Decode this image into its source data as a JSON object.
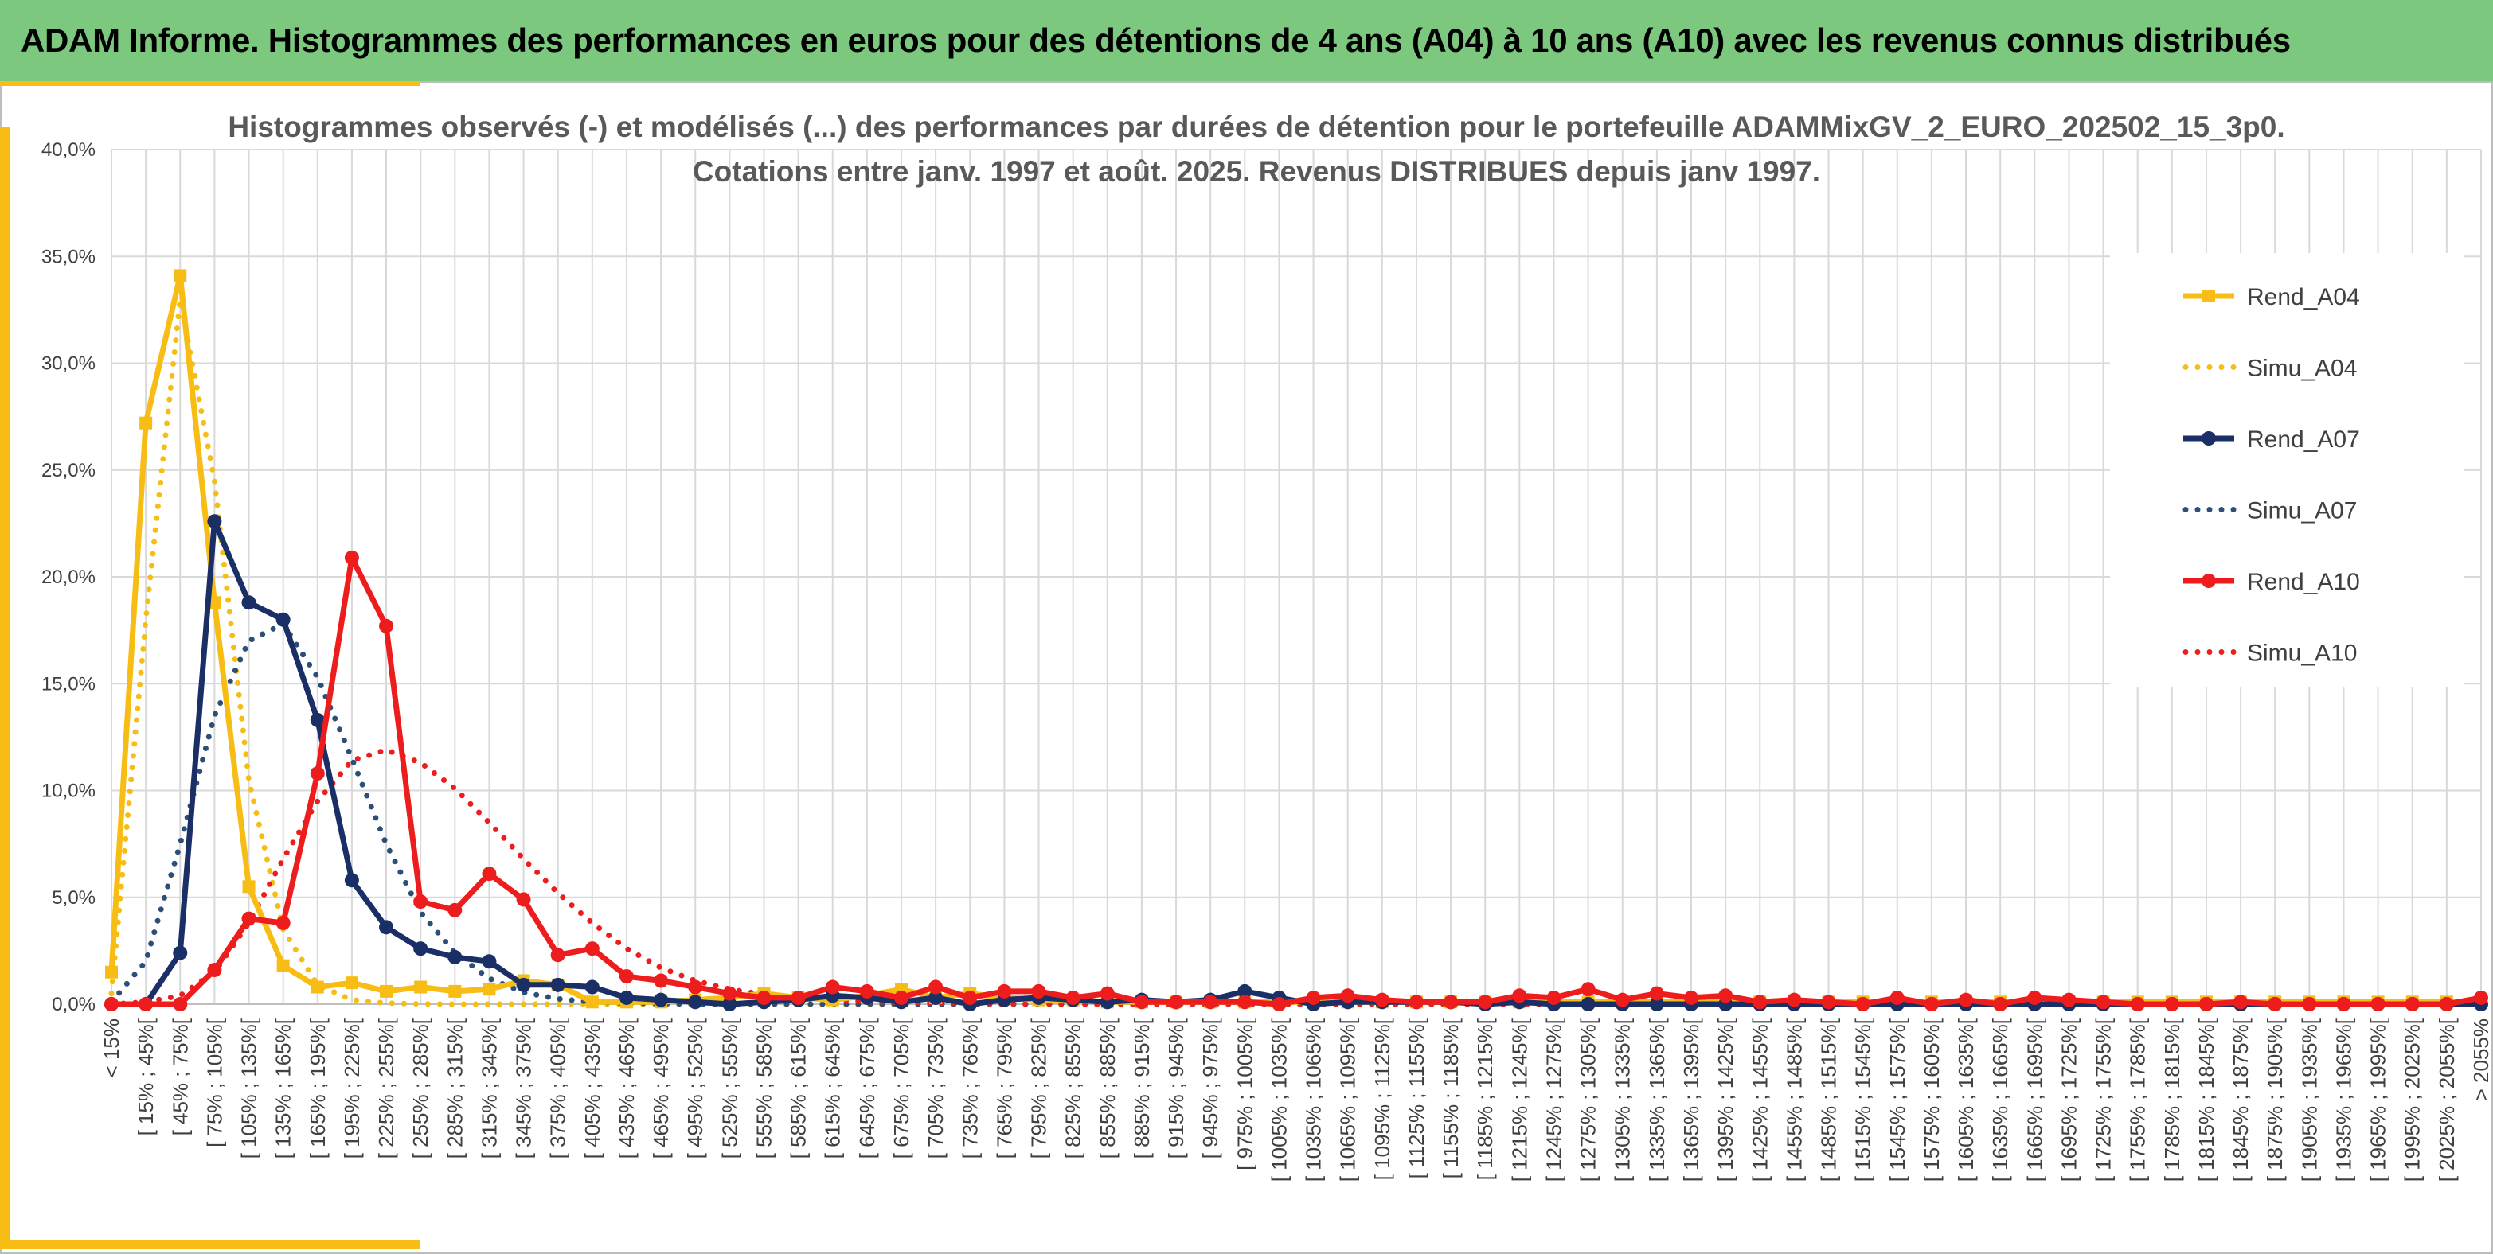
{
  "banner": {
    "title": "ADAM Informe. Histogrammes des performances en euros pour des détentions de 4 ans (A04) à 10 ans (A10) avec les revenus connus distribués"
  },
  "colors": {
    "a04": "#f7bd14",
    "a07": "#1a2f66",
    "a07_simu": "#2c4f78",
    "a10": "#ee1d1d",
    "banner": "#7dc87f",
    "frame_accent": "#f7bd14"
  },
  "chart_data": {
    "type": "line",
    "title": [
      "Histogrammes observés (-) et modélisés (...) des performances par durées de détention pour le portefeuille ADAMMixGV_2_EURO_202502_15_3p0.",
      "Cotations entre janv. 1997 et août. 2025. Revenus DISTRIBUES depuis janv 1997."
    ],
    "xlabel": "",
    "ylabel": "",
    "ylim": [
      0,
      40
    ],
    "yticks": [
      "0,0%",
      "5,0%",
      "10,0%",
      "15,0%",
      "20,0%",
      "25,0%",
      "30,0%",
      "35,0%",
      "40,0%"
    ],
    "grid": true,
    "legend_position": "right",
    "categories": [
      "< 15%",
      "[ 15% ; 45%[",
      "[ 45% ; 75%[",
      "[ 75% ; 105%[",
      "[ 105% ; 135%[",
      "[ 135% ; 165%[",
      "[ 165% ; 195%[",
      "[ 195% ; 225%[",
      "[ 225% ; 255%[",
      "[ 255% ; 285%[",
      "[ 285% ; 315%[",
      "[ 315% ; 345%[",
      "[ 345% ; 375%[",
      "[ 375% ; 405%[",
      "[ 405% ; 435%[",
      "[ 435% ; 465%[",
      "[ 465% ; 495%[",
      "[ 495% ; 525%[",
      "[ 525% ; 555%[",
      "[ 555% ; 585%[",
      "[ 585% ; 615%[",
      "[ 615% ; 645%[",
      "[ 645% ; 675%[",
      "[ 675% ; 705%[",
      "[ 705% ; 735%[",
      "[ 735% ; 765%[",
      "[ 765% ; 795%[",
      "[ 795% ; 825%[",
      "[ 825% ; 855%[",
      "[ 855% ; 885%[",
      "[ 885% ; 915%[",
      "[ 915% ; 945%[",
      "[ 945% ; 975%[",
      "[ 975% ; 1005%[",
      "[ 1005% ; 1035%[",
      "[ 1035% ; 1065%[",
      "[ 1065% ; 1095%[",
      "[ 1095% ; 1125%[",
      "[ 1125% ; 1155%[",
      "[ 1155% ; 1185%[",
      "[ 1185% ; 1215%[",
      "[ 1215% ; 1245%[",
      "[ 1245% ; 1275%[",
      "[ 1275% ; 1305%[",
      "[ 1305% ; 1335%[",
      "[ 1335% ; 1365%[",
      "[ 1365% ; 1395%[",
      "[ 1395% ; 1425%[",
      "[ 1425% ; 1455%[",
      "[ 1455% ; 1485%[",
      "[ 1485% ; 1515%[",
      "[ 1515% ; 1545%[",
      "[ 1545% ; 1575%[",
      "[ 1575% ; 1605%[",
      "[ 1605% ; 1635%[",
      "[ 1635% ; 1665%[",
      "[ 1665% ; 1695%[",
      "[ 1695% ; 1725%[",
      "[ 1725% ; 1755%[",
      "[ 1755% ; 1785%[",
      "[ 1785% ; 1815%[",
      "[ 1815% ; 1845%[",
      "[ 1845% ; 1875%[",
      "[ 1875% ; 1905%[",
      "[ 1905% ; 1935%[",
      "[ 1935% ; 1965%[",
      "[ 1965% ; 1995%[",
      "[ 1995% ; 2025%[",
      "[ 2025% ; 2055%[",
      "> 2055%"
    ],
    "series": [
      {
        "name": "Rend_A04",
        "style": "solid",
        "marker": "square",
        "color": "#f7bd14",
        "values": [
          1.5,
          27.2,
          34.1,
          18.8,
          5.5,
          1.8,
          0.8,
          1.0,
          0.6,
          0.8,
          0.6,
          0.7,
          1.1,
          0.9,
          0.1,
          0.1,
          0.1,
          0.2,
          0.3,
          0.5,
          0.3,
          0.2,
          0.4,
          0.7,
          0.3,
          0.5,
          0.3,
          0.2,
          0.2,
          0.1,
          0.1,
          0.1,
          0.1,
          0.1,
          0.1,
          0.1,
          0.1,
          0.1,
          0.1,
          0.1,
          0.1,
          0.1,
          0.1,
          0.1,
          0.1,
          0.1,
          0.1,
          0.1,
          0.1,
          0.1,
          0.1,
          0.1,
          0.1,
          0.1,
          0.1,
          0.1,
          0.1,
          0.1,
          0.1,
          0.1,
          0.1,
          0.1,
          0.1,
          0.1,
          0.1,
          0.1,
          0.1,
          0.1,
          0.1,
          0.1
        ]
      },
      {
        "name": "Simu_A04",
        "style": "dotted",
        "marker": "none",
        "color": "#f7bd14",
        "values": [
          0.5,
          18.0,
          33.0,
          24.5,
          10.5,
          3.5,
          0.9,
          0.2,
          0.05,
          0.01,
          0,
          0,
          0,
          0,
          0,
          0,
          0,
          0,
          0,
          0,
          0,
          0,
          0,
          0,
          0,
          0,
          0,
          0,
          0,
          0,
          0,
          0,
          0,
          0,
          0,
          0,
          0,
          0,
          0,
          0,
          0,
          0,
          0,
          0,
          0,
          0,
          0,
          0,
          0,
          0,
          0,
          0,
          0,
          0,
          0,
          0,
          0,
          0,
          0,
          0,
          0,
          0,
          0,
          0,
          0,
          0,
          0,
          0,
          0,
          0
        ]
      },
      {
        "name": "Rend_A07",
        "style": "solid",
        "marker": "circle",
        "color": "#1a2f66",
        "values": [
          0.0,
          0.0,
          2.4,
          22.6,
          18.8,
          18.0,
          13.3,
          5.8,
          3.6,
          2.6,
          2.2,
          2.0,
          0.9,
          0.9,
          0.8,
          0.3,
          0.2,
          0.1,
          0.0,
          0.1,
          0.2,
          0.4,
          0.3,
          0.1,
          0.3,
          0.0,
          0.2,
          0.3,
          0.2,
          0.1,
          0.2,
          0.1,
          0.2,
          0.6,
          0.3,
          0.0,
          0.1,
          0.1,
          0.1,
          0.1,
          0.0,
          0.1,
          0.0,
          0.0,
          0.0,
          0.0,
          0.0,
          0.0,
          0.0,
          0.0,
          0.0,
          0.0,
          0.0,
          0.0,
          0.0,
          0.0,
          0.0,
          0.0,
          0.0,
          0.0,
          0.0,
          0.0,
          0.0,
          0.0,
          0.0,
          0.0,
          0.0,
          0.0,
          0.0,
          0.0
        ]
      },
      {
        "name": "Simu_A07",
        "style": "dotted",
        "marker": "none",
        "color": "#2c4f78",
        "values": [
          0.1,
          2.0,
          7.5,
          13.5,
          17.0,
          17.8,
          15.3,
          11.5,
          7.5,
          4.3,
          2.4,
          1.2,
          0.55,
          0.25,
          0.1,
          0.05,
          0.02,
          0,
          0,
          0,
          0,
          0,
          0,
          0,
          0,
          0,
          0,
          0,
          0,
          0,
          0,
          0,
          0,
          0,
          0,
          0,
          0,
          0,
          0,
          0,
          0,
          0,
          0,
          0,
          0,
          0,
          0,
          0,
          0,
          0,
          0,
          0,
          0,
          0,
          0,
          0,
          0,
          0,
          0,
          0,
          0,
          0,
          0,
          0,
          0,
          0,
          0,
          0,
          0,
          0
        ]
      },
      {
        "name": "Rend_A10",
        "style": "solid",
        "marker": "circle",
        "color": "#ee1d1d",
        "values": [
          0.0,
          0.0,
          0.0,
          1.6,
          4.0,
          3.8,
          10.8,
          20.9,
          17.7,
          4.8,
          4.4,
          6.1,
          4.9,
          2.3,
          2.6,
          1.3,
          1.1,
          0.8,
          0.5,
          0.3,
          0.3,
          0.8,
          0.6,
          0.3,
          0.8,
          0.3,
          0.6,
          0.6,
          0.3,
          0.5,
          0.1,
          0.1,
          0.1,
          0.1,
          0.0,
          0.3,
          0.4,
          0.2,
          0.1,
          0.1,
          0.1,
          0.4,
          0.3,
          0.7,
          0.2,
          0.5,
          0.3,
          0.4,
          0.1,
          0.2,
          0.1,
          0.0,
          0.3,
          0.0,
          0.2,
          0.0,
          0.3,
          0.2,
          0.1,
          0.0,
          0.0,
          0.0,
          0.1,
          0.0,
          0.0,
          0.0,
          0.0,
          0.0,
          0.0,
          0.3
        ]
      },
      {
        "name": "Simu_A10",
        "style": "dotted",
        "marker": "none",
        "color": "#ee1d1d",
        "values": [
          0.0,
          0.1,
          0.4,
          1.5,
          3.8,
          6.8,
          9.5,
          11.4,
          11.9,
          11.3,
          10.1,
          8.5,
          6.8,
          5.2,
          3.8,
          2.6,
          1.7,
          1.1,
          0.7,
          0.45,
          0.3,
          0.2,
          0.12,
          0.08,
          0.05,
          0.03,
          0.02,
          0.01,
          0,
          0,
          0,
          0,
          0,
          0,
          0,
          0,
          0,
          0,
          0,
          0,
          0,
          0,
          0,
          0,
          0,
          0,
          0,
          0,
          0,
          0,
          0,
          0,
          0,
          0,
          0,
          0,
          0,
          0,
          0,
          0,
          0,
          0,
          0,
          0,
          0,
          0,
          0,
          0,
          0,
          0
        ]
      }
    ]
  }
}
